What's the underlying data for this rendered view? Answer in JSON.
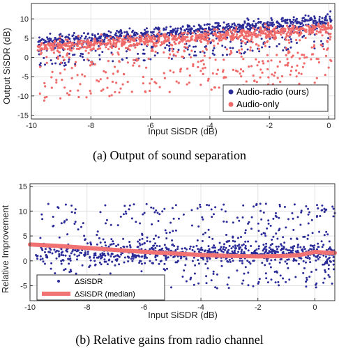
{
  "captions": {
    "a": "(a)  Output of sound separation",
    "b": "(b) Relative gains from radio channel"
  },
  "colors": {
    "audio_radio": "#2b2b99",
    "audio_only": "#f06a6a",
    "median": "#f07272",
    "grid": "#e2e2e2"
  },
  "chart_data": [
    {
      "type": "scatter",
      "xlabel": "Input SiSDR (dB)",
      "ylabel": "Output SiSDR (dB)",
      "xlim": [
        -10,
        0.2
      ],
      "ylim": [
        -16,
        14
      ],
      "xticks": [
        "-10",
        "-8",
        "-6",
        "-4",
        "-2",
        "0"
      ],
      "yticks": [
        "-15",
        "-10",
        "-5",
        "0",
        "5",
        "10"
      ],
      "grid": true,
      "legend_placement": "bottom-right",
      "series": [
        {
          "name": "Audio-radio (ours)",
          "color": "#2b2b99",
          "x_range": [
            -9.8,
            0.1
          ],
          "trend": "y = 9.5 + 0.55 * x",
          "spread_above": 4,
          "spread_below": 7,
          "count": 900
        },
        {
          "name": "Audio-only",
          "color": "#f06a6a",
          "x_range": [
            -9.8,
            0.1
          ],
          "trend": "y = 7.5 + 0.5 * x",
          "spread_above": 4,
          "spread_below": 14,
          "count": 1100
        }
      ]
    },
    {
      "type": "scatter",
      "xlabel": "Input SiSDR (dB)",
      "ylabel": "Relative Improvement",
      "xlim": [
        -10,
        0.7
      ],
      "ylim": [
        -8,
        15.5
      ],
      "xticks": [
        "-10",
        "-8",
        "-6",
        "-4",
        "-2",
        "0"
      ],
      "yticks": [
        "-5",
        "0",
        "5",
        "10",
        "15"
      ],
      "grid": true,
      "legend_placement": "bottom-left",
      "series": [
        {
          "name": "ΔSiSDR",
          "color": "#2b2b99",
          "x_range": [
            -9.8,
            0.7
          ],
          "center": 1.5,
          "spread": [
            -6,
            15
          ],
          "count": 1100
        },
        {
          "name": "ΔSiSDR (median)",
          "color": "#f07272",
          "x": [
            -10,
            -9,
            -8,
            -7,
            -6,
            -5,
            -4,
            -3,
            -2,
            -1,
            -0.5,
            0,
            0.3,
            0.7
          ],
          "y": [
            3.3,
            3.0,
            2.6,
            2.2,
            1.8,
            1.5,
            1.2,
            1.0,
            0.9,
            1.0,
            1.2,
            1.8,
            1.7,
            1.6
          ]
        }
      ]
    }
  ]
}
